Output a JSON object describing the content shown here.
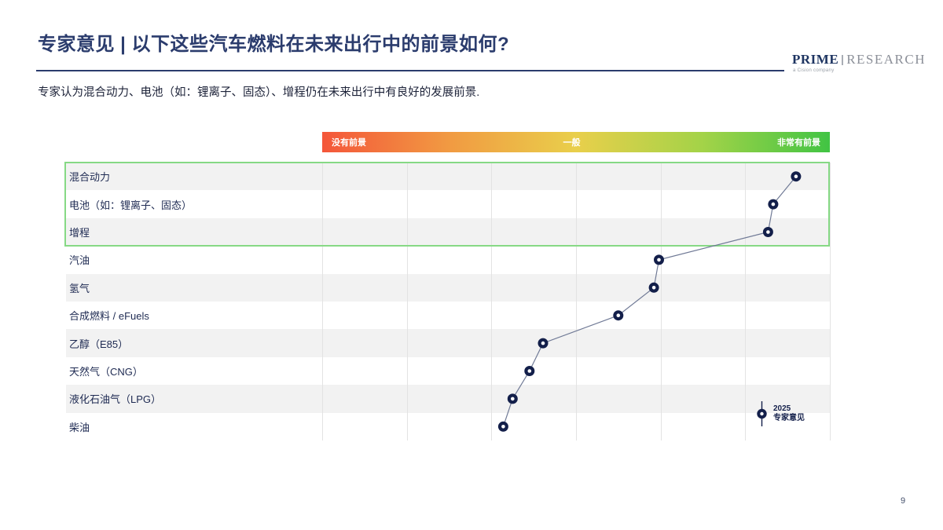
{
  "slide": {
    "title": "专家意见 | 以下这些汽车燃料在未来出行中的前景如何?",
    "subtitle": "专家认为混合动力、电池（如：锂离子、固态）、增程仍在未来出行中有良好的发展前景.",
    "page_number": "9"
  },
  "logo": {
    "prime": "PRIME",
    "research": "RESEARCH",
    "tagline": "a Cision company"
  },
  "scale_bar": {
    "left_label": "没有前景",
    "center_label": "一般",
    "right_label": "非常有前景",
    "gradient": [
      "#f4563a",
      "#f19a42",
      "#e9cf4b",
      "#a3d348",
      "#41c444"
    ]
  },
  "legend": {
    "line1": "2025",
    "line2": "专家意见"
  },
  "colors": {
    "navy": "#131f4a",
    "title_navy": "#2b3c6d",
    "label_navy": "#1e2a52",
    "connector_line": "#707a96",
    "row_alt": "#f2f2f2",
    "gridline": "#e3e3e3",
    "highlight_border": "#86d985"
  },
  "chart_data": {
    "type": "scatter",
    "subtype": "horizontal-dot-strip",
    "title": "",
    "xlabel": "",
    "ylabel": "",
    "categories": [
      "混合动力",
      "电池（如：锂离子、固态）",
      "增程",
      "汽油",
      "氢气",
      "合成燃料 / eFuels",
      "乙醇（E85）",
      "天然气（CNG）",
      "液化石油气（LPG）",
      "柴油"
    ],
    "series": [
      {
        "name": "2025 专家意见",
        "values": [
          6.6,
          6.33,
          6.27,
          4.98,
          4.92,
          4.5,
          3.61,
          3.45,
          3.25,
          3.14
        ]
      }
    ],
    "xlim": [
      1,
      7
    ],
    "x_axis": {
      "type": "likert-gradient",
      "left_anchor": "没有前景",
      "center_anchor": "一般",
      "right_anchor": "非常有前景"
    },
    "grid": "vertical",
    "gridline_count": 7,
    "legend_position": "bottom-right",
    "highlighted_rows": 3
  }
}
